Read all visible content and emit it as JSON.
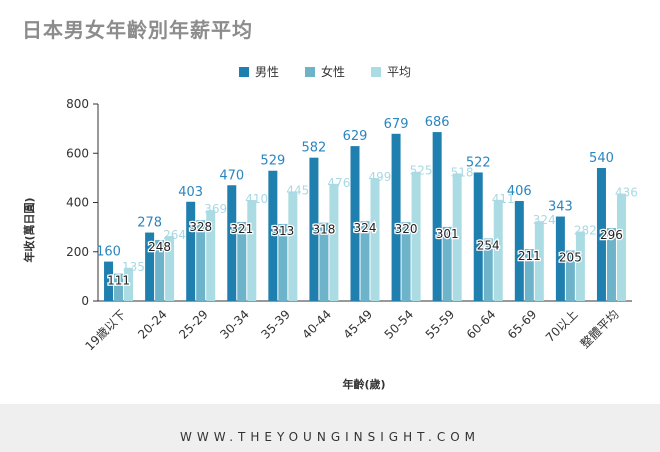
{
  "chart_data": {
    "type": "bar",
    "title": "日本男女年齡別年薪平均",
    "xlabel": "年齡(歲)",
    "ylabel": "年收(萬日圓)",
    "ylim": [
      0,
      800
    ],
    "yticks": [
      0,
      200,
      400,
      600,
      800
    ],
    "grid": false,
    "legend_position": "top",
    "categories": [
      "19歲以下",
      "20-24",
      "25-29",
      "30-34",
      "35-39",
      "40-44",
      "45-49",
      "50-54",
      "55-59",
      "60-64",
      "65-69",
      "70以上",
      "整體平均"
    ],
    "series": [
      {
        "name": "男性",
        "color": "#1f7fae",
        "label_color": "#2a86bf",
        "values": [
          160,
          278,
          403,
          470,
          529,
          582,
          629,
          679,
          686,
          522,
          406,
          343,
          540
        ]
      },
      {
        "name": "女性",
        "color": "#6db3c9",
        "label_color": "#222222",
        "values": [
          111,
          248,
          328,
          321,
          313,
          318,
          324,
          320,
          301,
          254,
          211,
          205,
          296
        ]
      },
      {
        "name": "平均",
        "color": "#abdbe3",
        "label_color": "#a9d9e3",
        "values": [
          135,
          264,
          369,
          410,
          445,
          476,
          499,
          525,
          518,
          411,
          324,
          282,
          436
        ]
      }
    ]
  },
  "footer": {
    "text": "WWW.THEYOUNGINSIGHT.COM"
  }
}
